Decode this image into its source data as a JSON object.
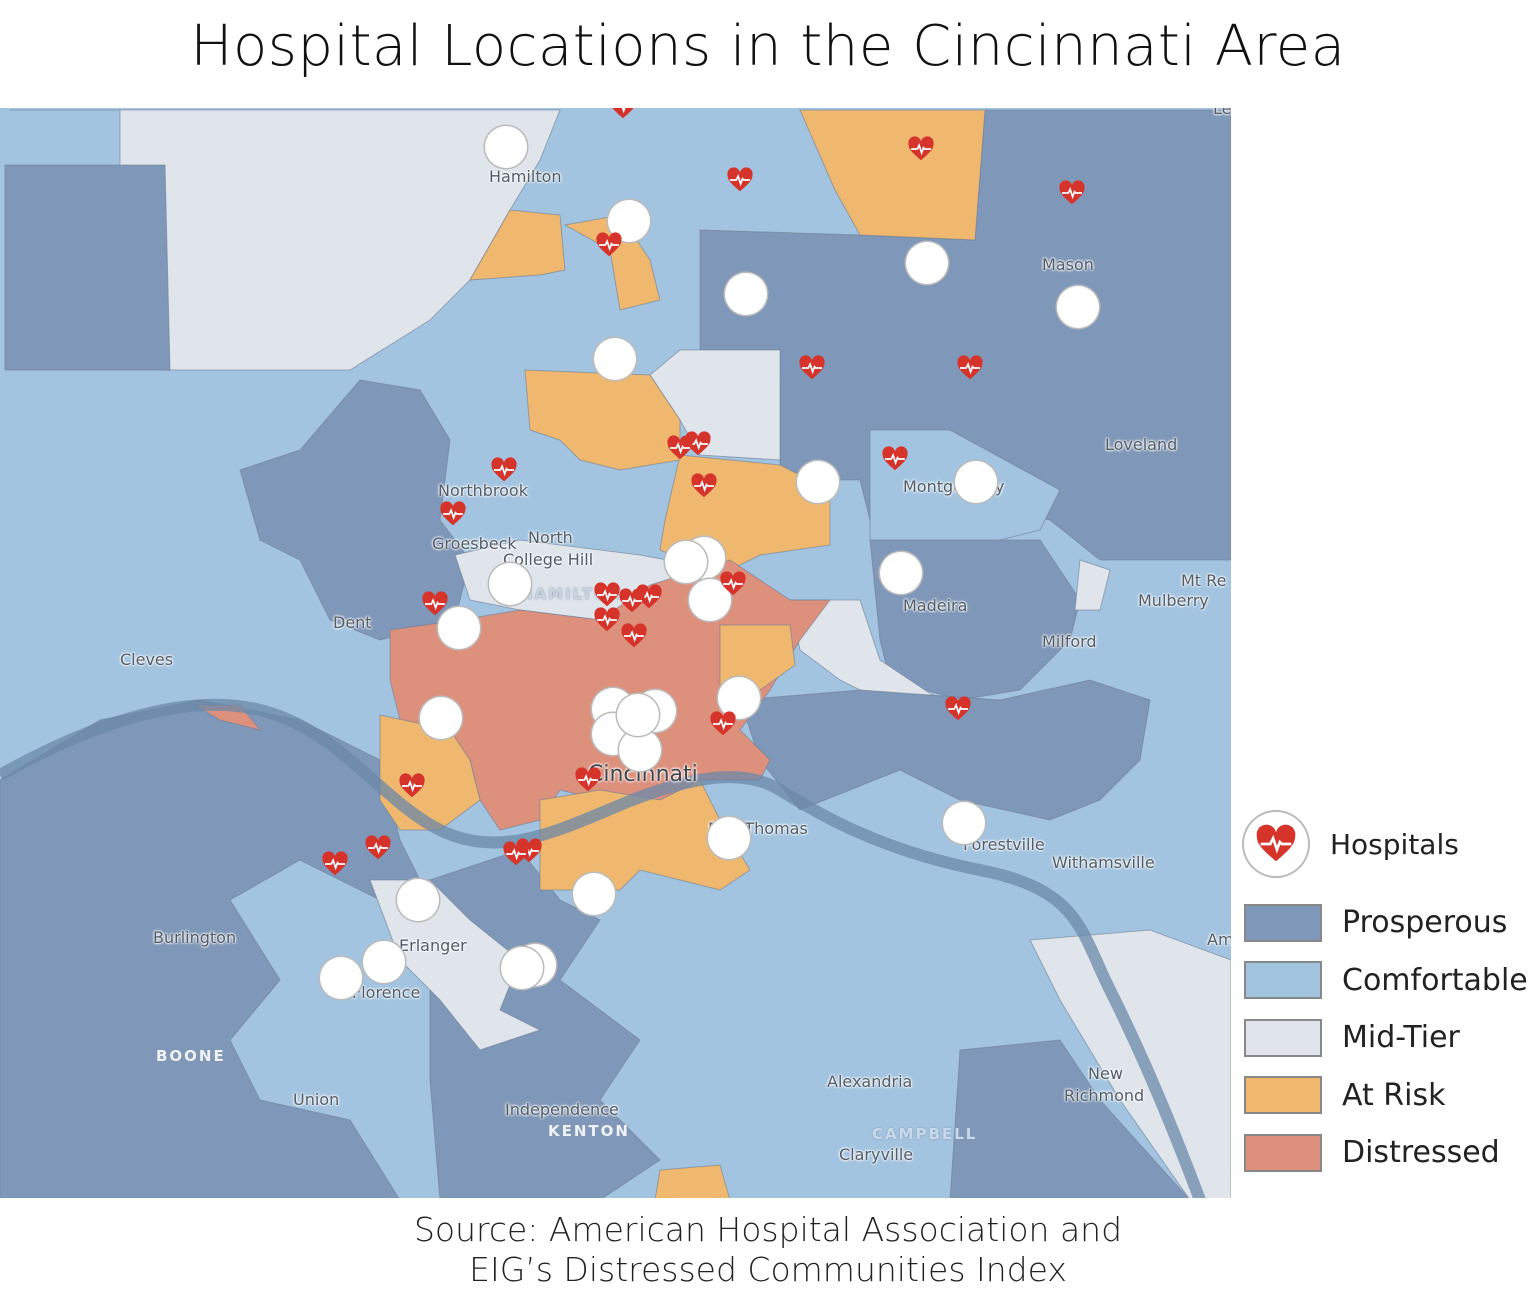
{
  "title": "Hospital Locations in the Cincinnati Area",
  "source_line1": "Source: American Hospital Association and",
  "source_line2": "EIG’s Distressed Communities Index",
  "colors": {
    "prosperous": "#7f97b8",
    "comfortable": "#a3c4e0",
    "mid_tier": "#dfe5eb",
    "at_risk": "#f0b86e",
    "distressed": "#dd907c",
    "hospital_icon": "#d6332b"
  },
  "legend": {
    "hospitals": "Hospitals",
    "hospital_icon": "heart-pulse-icon",
    "categories": [
      "Prosperous",
      "Comfortable",
      "Mid-Tier",
      "At Risk",
      "Distressed"
    ]
  },
  "map": {
    "places": [
      "Hamilton",
      "Mason",
      "Loveland",
      "Montgomery",
      "Northbrook",
      "Groesbeck",
      "North",
      "College Hill",
      "Dent",
      "Cleves",
      "Madeira",
      "Mt Re",
      "Mulberry",
      "Milford",
      "Cincinnati",
      "Fort Thomas",
      "Forestville",
      "Withamsville",
      "Burlington",
      "Erlanger",
      "Florence",
      "Union",
      "Independence",
      "Alexandria",
      "Claryville",
      "New",
      "Richmond",
      "Am",
      "Le"
    ],
    "counties": [
      "HAMILTON",
      "BOONE",
      "KENTON",
      "CAMPBELL"
    ]
  }
}
